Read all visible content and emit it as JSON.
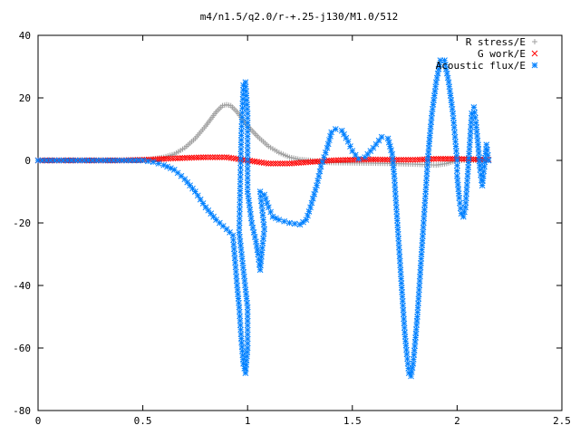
{
  "chart_data": {
    "type": "scatter",
    "title": "m4/n1.5/q2.0/r-+.25-j130/M1.0/512",
    "xlabel": "",
    "ylabel": "",
    "xlim": [
      0,
      2.5
    ],
    "ylim": [
      -80,
      40
    ],
    "x_ticks": [
      "0",
      "0.5",
      "1",
      "1.5",
      "2",
      "2.5"
    ],
    "y_ticks": [
      "40",
      "20",
      "0",
      "-20",
      "-40",
      "-60",
      "-80"
    ],
    "grid": false,
    "legend_position": "top-right",
    "series": [
      {
        "name": "R stress/E",
        "marker": "+",
        "color": "#a0a0a0",
        "points": [
          [
            0,
            0
          ],
          [
            0.1,
            0
          ],
          [
            0.2,
            0
          ],
          [
            0.3,
            0
          ],
          [
            0.4,
            0
          ],
          [
            0.5,
            0
          ],
          [
            0.55,
            0.5
          ],
          [
            0.6,
            1
          ],
          [
            0.65,
            2
          ],
          [
            0.7,
            4
          ],
          [
            0.75,
            7
          ],
          [
            0.8,
            11
          ],
          [
            0.85,
            15.5
          ],
          [
            0.88,
            17.5
          ],
          [
            0.9,
            17.8
          ],
          [
            0.92,
            17.5
          ],
          [
            0.95,
            15.5
          ],
          [
            1.0,
            11
          ],
          [
            1.05,
            7.5
          ],
          [
            1.1,
            4.5
          ],
          [
            1.15,
            2.5
          ],
          [
            1.2,
            1
          ],
          [
            1.25,
            0.3
          ],
          [
            1.3,
            0
          ],
          [
            1.35,
            -0.5
          ],
          [
            1.4,
            -0.7
          ],
          [
            1.5,
            -0.8
          ],
          [
            1.6,
            -0.9
          ],
          [
            1.7,
            -1
          ],
          [
            1.8,
            -1.2
          ],
          [
            1.9,
            -1.5
          ],
          [
            1.95,
            -1
          ],
          [
            2.0,
            0
          ],
          [
            2.1,
            0
          ],
          [
            2.15,
            0
          ]
        ]
      },
      {
        "name": "G work/E",
        "marker": "x",
        "color": "#ff0000",
        "points": [
          [
            0,
            0
          ],
          [
            0.2,
            0
          ],
          [
            0.4,
            0
          ],
          [
            0.55,
            0.3
          ],
          [
            0.6,
            0.5
          ],
          [
            0.7,
            0.8
          ],
          [
            0.8,
            1
          ],
          [
            0.9,
            1
          ],
          [
            1.0,
            0
          ],
          [
            1.1,
            -1
          ],
          [
            1.2,
            -1
          ],
          [
            1.3,
            -0.5
          ],
          [
            1.4,
            0
          ],
          [
            1.5,
            0.2
          ],
          [
            1.6,
            0.3
          ],
          [
            1.7,
            0.2
          ],
          [
            1.8,
            0.2
          ],
          [
            1.9,
            0.5
          ],
          [
            2.0,
            0.5
          ],
          [
            2.1,
            0.3
          ],
          [
            2.15,
            0.2
          ]
        ]
      },
      {
        "name": "Acoustic flux/E",
        "marker": "*",
        "color": "#0080ff",
        "points": [
          [
            0,
            0
          ],
          [
            0.1,
            0
          ],
          [
            0.2,
            0
          ],
          [
            0.3,
            0
          ],
          [
            0.4,
            0
          ],
          [
            0.5,
            0
          ],
          [
            0.55,
            -0.5
          ],
          [
            0.6,
            -1.5
          ],
          [
            0.65,
            -3
          ],
          [
            0.7,
            -6
          ],
          [
            0.75,
            -10
          ],
          [
            0.8,
            -15
          ],
          [
            0.85,
            -19
          ],
          [
            0.9,
            -22
          ],
          [
            0.93,
            -24
          ],
          [
            0.95,
            -40
          ],
          [
            0.96,
            -47
          ],
          [
            0.97,
            -57
          ],
          [
            0.98,
            -65
          ],
          [
            0.99,
            -68
          ],
          [
            1.0,
            -60
          ],
          [
            1.0,
            -47
          ],
          [
            0.96,
            -23
          ],
          [
            0.97,
            8
          ],
          [
            0.98,
            24
          ],
          [
            0.99,
            25
          ],
          [
            1.0,
            15
          ],
          [
            1.0,
            -10
          ],
          [
            1.02,
            -20
          ],
          [
            1.04,
            -26
          ],
          [
            1.05,
            -30
          ],
          [
            1.06,
            -35
          ],
          [
            1.07,
            -28
          ],
          [
            1.08,
            -22
          ],
          [
            1.06,
            -10
          ],
          [
            1.08,
            -11
          ],
          [
            1.1,
            -15
          ],
          [
            1.12,
            -18
          ],
          [
            1.15,
            -19
          ],
          [
            1.2,
            -20
          ],
          [
            1.25,
            -20.5
          ],
          [
            1.28,
            -19
          ],
          [
            1.3,
            -15
          ],
          [
            1.33,
            -8
          ],
          [
            1.35,
            -2
          ],
          [
            1.38,
            4
          ],
          [
            1.4,
            9
          ],
          [
            1.42,
            10
          ],
          [
            1.45,
            9.5
          ],
          [
            1.48,
            6
          ],
          [
            1.5,
            3
          ],
          [
            1.53,
            0.5
          ],
          [
            1.56,
            1
          ],
          [
            1.6,
            4
          ],
          [
            1.64,
            7.5
          ],
          [
            1.67,
            7
          ],
          [
            1.69,
            2
          ],
          [
            1.7,
            -5
          ],
          [
            1.71,
            -15
          ],
          [
            1.72,
            -25
          ],
          [
            1.73,
            -35
          ],
          [
            1.74,
            -45
          ],
          [
            1.75,
            -55
          ],
          [
            1.76,
            -62
          ],
          [
            1.77,
            -68
          ],
          [
            1.78,
            -69
          ],
          [
            1.79,
            -65
          ],
          [
            1.8,
            -58
          ],
          [
            1.81,
            -50
          ],
          [
            1.82,
            -40
          ],
          [
            1.83,
            -30
          ],
          [
            1.84,
            -20
          ],
          [
            1.85,
            -10
          ],
          [
            1.86,
            0
          ],
          [
            1.87,
            8
          ],
          [
            1.88,
            15
          ],
          [
            1.9,
            25
          ],
          [
            1.92,
            32
          ],
          [
            1.94,
            32
          ],
          [
            1.96,
            25
          ],
          [
            1.98,
            15
          ],
          [
            2.0,
            0
          ],
          [
            2.0,
            -5
          ],
          [
            2.01,
            -12
          ],
          [
            2.02,
            -17
          ],
          [
            2.03,
            -18
          ],
          [
            2.04,
            -15
          ],
          [
            2.05,
            -5
          ],
          [
            2.06,
            5
          ],
          [
            2.07,
            15
          ],
          [
            2.08,
            17
          ],
          [
            2.09,
            12
          ],
          [
            2.1,
            5
          ],
          [
            2.11,
            -3
          ],
          [
            2.12,
            -8
          ],
          [
            2.13,
            -2
          ],
          [
            2.14,
            5
          ],
          [
            2.15,
            0
          ]
        ]
      }
    ]
  }
}
